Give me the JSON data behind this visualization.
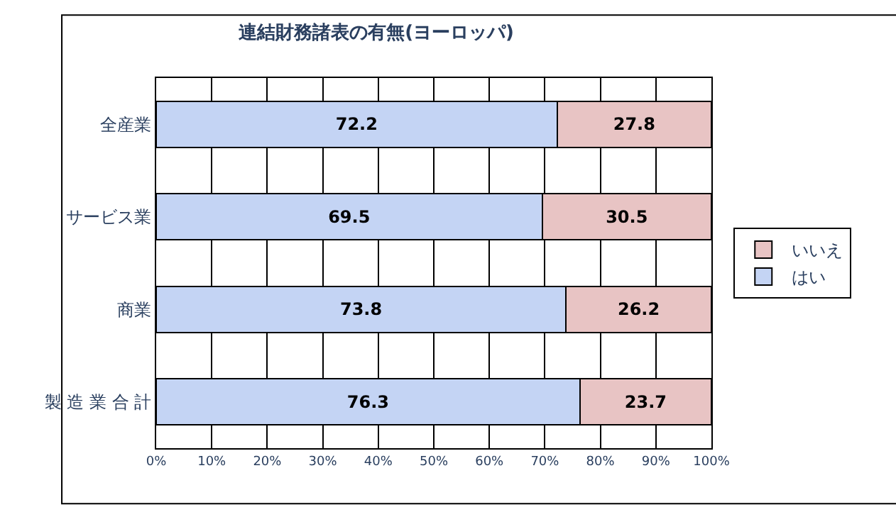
{
  "chart_data": {
    "type": "bar",
    "orientation": "horizontal",
    "stacked": true,
    "title": "連結財務諸表の有無(ヨーロッパ)",
    "categories": [
      "全産業",
      "サービス業",
      "商業",
      "製 造 業 合 計"
    ],
    "series": [
      {
        "name": "はい",
        "color": "#c4d4f4",
        "values": [
          72.2,
          69.5,
          73.8,
          76.3
        ]
      },
      {
        "name": "いいえ",
        "color": "#e8c4c4",
        "values": [
          27.8,
          30.5,
          26.2,
          23.7
        ]
      }
    ],
    "xlim": [
      0,
      100
    ],
    "xticks": [
      {
        "value": 0,
        "label": "0%"
      },
      {
        "value": 10,
        "label": "10%"
      },
      {
        "value": 20,
        "label": "20%"
      },
      {
        "value": 30,
        "label": "30%"
      },
      {
        "value": 40,
        "label": "40%"
      },
      {
        "value": 50,
        "label": "50%"
      },
      {
        "value": 60,
        "label": "60%"
      },
      {
        "value": 70,
        "label": "70%"
      },
      {
        "value": 80,
        "label": "80%"
      },
      {
        "value": 90,
        "label": "90%"
      },
      {
        "value": 100,
        "label": "100%"
      }
    ],
    "grid": "x",
    "legend": "right",
    "data_labels": true
  }
}
